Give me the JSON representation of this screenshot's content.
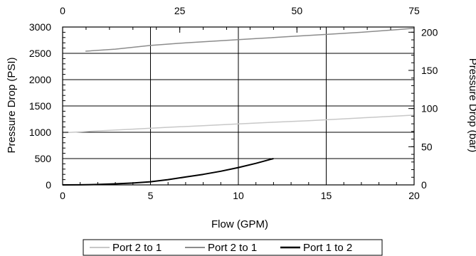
{
  "chart_data": {
    "type": "line",
    "xlabel": "Flow (GPM)",
    "ylabel": "Pressure Drop (PSI)",
    "y2label": "Pressure Drop (bar)",
    "xlim": [
      0,
      20
    ],
    "ylim": [
      0,
      3000
    ],
    "x_ticks": [
      0,
      5,
      10,
      15,
      20
    ],
    "y_ticks": [
      0,
      500,
      1000,
      1500,
      2000,
      2500,
      3000
    ],
    "x2lim": [
      0,
      75
    ],
    "x2_ticks": [
      0,
      25,
      50,
      75
    ],
    "y2lim": [
      0,
      206.8
    ],
    "y2_ticks": [
      0,
      50,
      100,
      150,
      200
    ],
    "grid": true,
    "legend_position": "bottom",
    "series": [
      {
        "name": "Port 2 to 1",
        "color": "#c8c8c8",
        "x": [
          0,
          2,
          4,
          6,
          8,
          10,
          12,
          14,
          16,
          18,
          20
        ],
        "y": [
          990,
          1025,
          1060,
          1095,
          1125,
          1160,
          1190,
          1220,
          1255,
          1290,
          1325
        ]
      },
      {
        "name": "Port 2 to 1",
        "color": "#8c8c8c",
        "x": [
          1.3,
          3,
          5,
          7,
          9,
          11,
          13,
          15,
          17,
          19,
          20
        ],
        "y": [
          2540,
          2580,
          2650,
          2700,
          2740,
          2780,
          2820,
          2860,
          2900,
          2950,
          2975
        ]
      },
      {
        "name": "Port 1 to 2",
        "color": "#000000",
        "x": [
          0,
          1,
          2,
          3,
          4,
          5,
          6,
          7,
          8,
          9,
          10,
          11,
          12
        ],
        "y": [
          0,
          2,
          8,
          20,
          35,
          60,
          100,
          150,
          200,
          260,
          330,
          410,
          500
        ]
      }
    ],
    "reference_line": {
      "y": 500,
      "x_start": 12,
      "x_end": 20
    }
  }
}
